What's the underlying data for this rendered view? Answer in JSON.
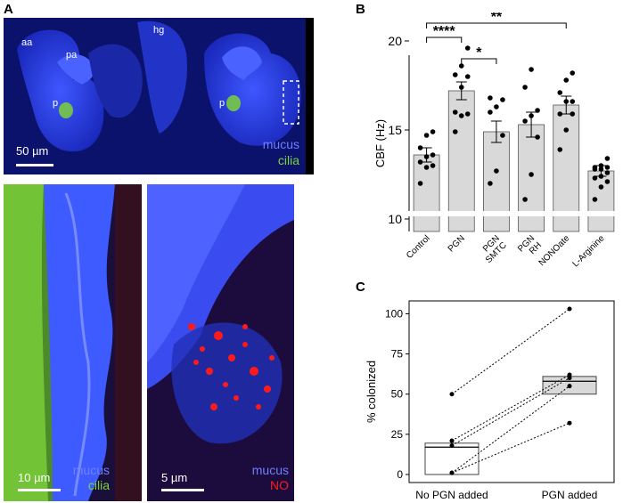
{
  "panels": {
    "a": "A",
    "b": "B",
    "c": "C"
  },
  "panel_a": {
    "top": {
      "labels": {
        "aa": "aa",
        "pa": "pa",
        "hg": "hg",
        "p_left": "p",
        "p_right": "p"
      },
      "scale": "50 µm",
      "legend": {
        "mucus": "mucus",
        "cilia": "cilia"
      }
    },
    "bottom_left": {
      "scale": "10 µm",
      "legend": {
        "mucus": "mucus",
        "cilia": "cilia"
      }
    },
    "bottom_right": {
      "scale": "5 µm",
      "legend": {
        "mucus": "mucus",
        "no": "NO"
      }
    },
    "colors": {
      "mucus": "#2f45ff",
      "cilia": "#7cd23a",
      "no": "#ff1a1a"
    }
  },
  "chart_data": [
    {
      "type": "bar",
      "categories": [
        "Control",
        "PGN",
        "PGN SMTC",
        "PGN RH",
        "NONOate",
        "L-Arginine"
      ],
      "category_lines": [
        [
          "Control"
        ],
        [
          "PGN"
        ],
        [
          "PGN",
          "SMTC"
        ],
        [
          "PGN",
          "RH"
        ],
        [
          "NONOate"
        ],
        [
          "L-Arginine"
        ]
      ],
      "values": [
        13.6,
        17.2,
        14.9,
        15.3,
        16.4,
        12.7
      ],
      "errors": [
        0.4,
        0.5,
        0.6,
        0.7,
        0.5,
        0.3
      ],
      "points": [
        [
          12.0,
          12.9,
          13.0,
          13.2,
          13.5,
          13.6,
          14.0,
          14.7,
          14.9
        ],
        [
          14.9,
          15.8,
          15.9,
          16.0,
          17.4,
          18.0,
          18.1,
          18.6,
          19.6
        ],
        [
          12.0,
          12.7,
          14.7,
          16.0,
          16.3,
          16.7,
          16.8
        ],
        [
          11.1,
          12.5,
          14.6,
          15.5,
          15.8,
          16.1,
          17.4,
          18.4
        ],
        [
          13.9,
          15.0,
          15.9,
          15.9,
          16.6,
          16.6,
          17.1,
          17.8,
          18.2
        ],
        [
          11.1,
          11.8,
          12.1,
          12.3,
          12.4,
          12.6,
          12.8,
          12.8,
          12.9,
          12.9,
          13.0,
          13.4
        ]
      ],
      "ylabel": "CBF (Hz)",
      "yticks": [
        10,
        15,
        20
      ],
      "ylim": [
        9.3,
        21.2
      ],
      "axis_break": true,
      "significance": [
        {
          "from": 0,
          "to": 1,
          "label": "****"
        },
        {
          "from": 1,
          "to": 2,
          "label": "*"
        },
        {
          "from": 0,
          "to": 4,
          "label": "**"
        }
      ],
      "bar_color": "#d9d9d9"
    },
    {
      "type": "box",
      "categories": [
        "No PGN added",
        "PGN added"
      ],
      "ylabel": "% colonized",
      "yticks": [
        0,
        25,
        50,
        75,
        100
      ],
      "ylim": [
        -5,
        108
      ],
      "boxes": [
        {
          "q1": 0,
          "median": 17,
          "q3": 19.5
        },
        {
          "q1": 50,
          "median": 58,
          "q3": 61
        }
      ],
      "pairs": [
        [
          50,
          103
        ],
        [
          21,
          62
        ],
        [
          18,
          60
        ],
        [
          1,
          55
        ],
        [
          1,
          32
        ]
      ],
      "box_colors": [
        "#ffffff",
        "#d9d9d9"
      ]
    }
  ]
}
